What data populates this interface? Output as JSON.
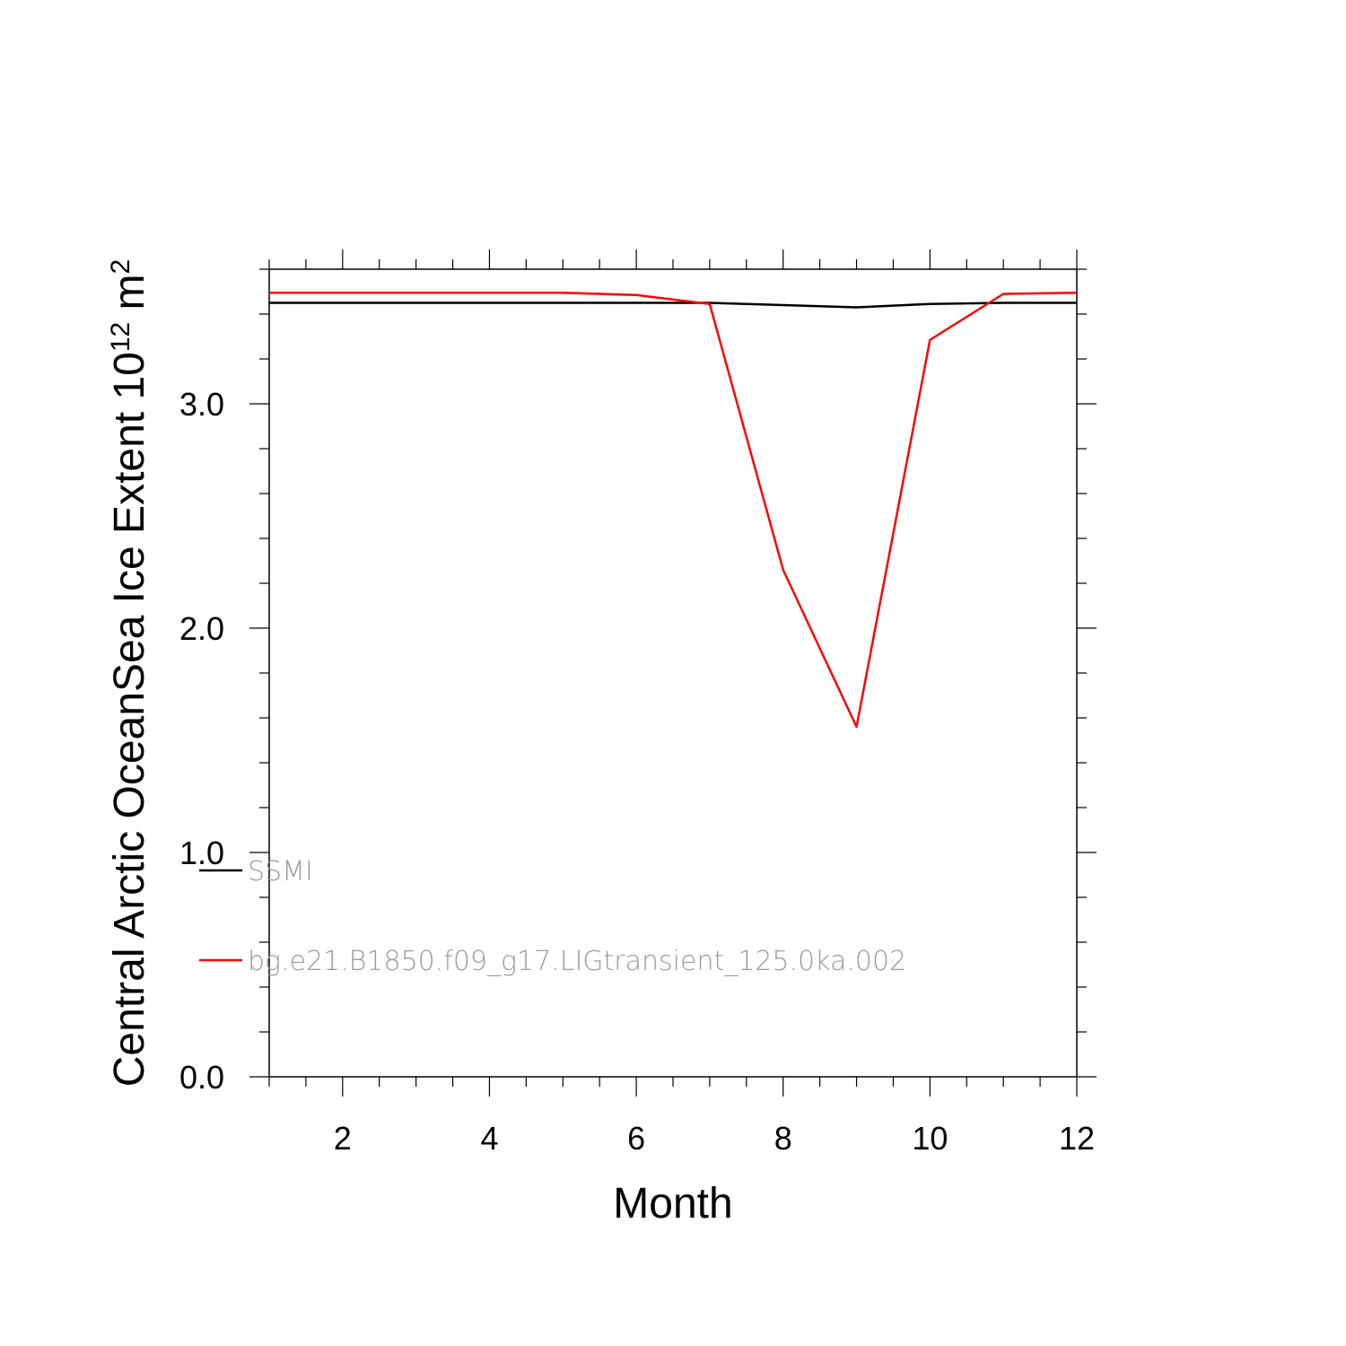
{
  "chart_data": {
    "type": "line",
    "xlabel": "Month",
    "ylabel_main": "Central Arctic OceanSea Ice Extent 10",
    "ylabel_exp": "12",
    "ylabel_unit": " m",
    "ylabel_unit_exp": "2",
    "xlim": [
      1,
      12
    ],
    "ylim": [
      0,
      3.6
    ],
    "x_ticks": [
      2,
      4,
      6,
      8,
      10,
      12
    ],
    "x_tick_labels": [
      "2",
      "4",
      "6",
      "8",
      "10",
      "12"
    ],
    "y_ticks": [
      0,
      1,
      2,
      3
    ],
    "y_tick_labels": [
      "0.0",
      "1.0",
      "2.0",
      "3.0"
    ],
    "x": [
      1,
      2,
      3,
      4,
      5,
      6,
      7,
      8,
      9,
      10,
      11,
      12
    ],
    "series": [
      {
        "name": "SSMI",
        "color": "#000000",
        "values": [
          3.45,
          3.45,
          3.45,
          3.45,
          3.45,
          3.45,
          3.45,
          3.44,
          3.43,
          3.445,
          3.45,
          3.45
        ]
      },
      {
        "name": "bg.e21.B1850.f09_g17.LIGtransient_125.0ka.002",
        "color": "#ff0000",
        "values": [
          3.495,
          3.495,
          3.495,
          3.495,
          3.495,
          3.485,
          3.445,
          2.26,
          1.56,
          3.285,
          3.49,
          3.495
        ]
      }
    ],
    "legend_position": "lower-left inside plot",
    "grid": false
  }
}
